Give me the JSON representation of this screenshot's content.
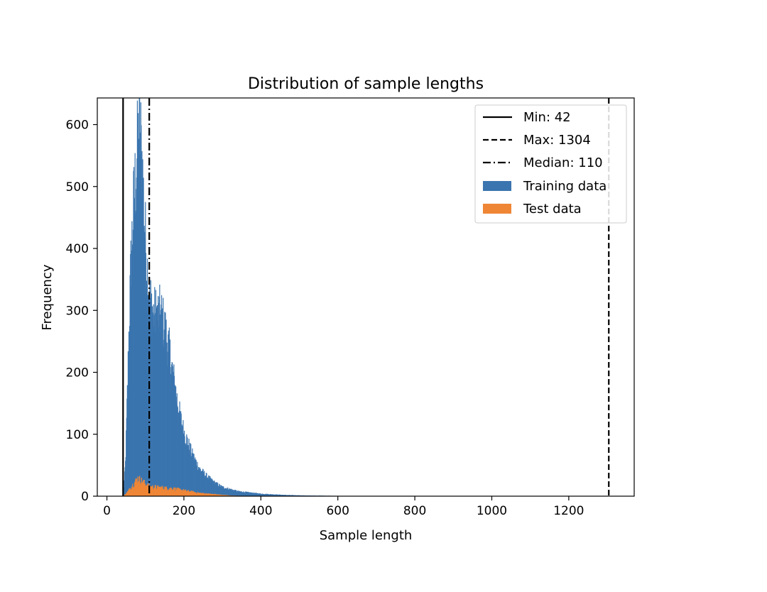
{
  "chart_data": {
    "type": "histogram",
    "title": "Distribution of sample lengths",
    "xlabel": "Sample length",
    "ylabel": "Frequency",
    "xlim": [
      -25,
      1370
    ],
    "ylim": [
      0,
      643
    ],
    "xticks": [
      0,
      200,
      400,
      600,
      800,
      1000,
      1200
    ],
    "yticks": [
      0,
      100,
      200,
      300,
      400,
      500,
      600
    ],
    "xtick_labels": [
      "0",
      "200",
      "400",
      "600",
      "800",
      "1000",
      "1200"
    ],
    "ytick_labels": [
      "0",
      "100",
      "200",
      "300",
      "400",
      "500",
      "600"
    ],
    "legend_position": "top-right",
    "reference_lines": [
      {
        "name": "min",
        "label": "Min: 42",
        "x": 42,
        "style": "solid"
      },
      {
        "name": "max",
        "label": "Max: 1304",
        "x": 1304,
        "style": "dashed"
      },
      {
        "name": "median",
        "label": "Median: 110",
        "x": 110,
        "style": "dashdot"
      }
    ],
    "series": [
      {
        "name": "Training data",
        "color": "#3b75af",
        "profile": [
          [
            42,
            0
          ],
          [
            48,
            60
          ],
          [
            55,
            230
          ],
          [
            62,
            390
          ],
          [
            70,
            490
          ],
          [
            78,
            560
          ],
          [
            84,
            615
          ],
          [
            90,
            560
          ],
          [
            96,
            470
          ],
          [
            102,
            390
          ],
          [
            110,
            330
          ],
          [
            120,
            300
          ],
          [
            130,
            300
          ],
          [
            140,
            300
          ],
          [
            150,
            275
          ],
          [
            160,
            245
          ],
          [
            170,
            205
          ],
          [
            180,
            165
          ],
          [
            190,
            130
          ],
          [
            200,
            105
          ],
          [
            220,
            70
          ],
          [
            240,
            45
          ],
          [
            260,
            32
          ],
          [
            280,
            22
          ],
          [
            300,
            15
          ],
          [
            340,
            8
          ],
          [
            400,
            4
          ],
          [
            460,
            2
          ],
          [
            520,
            1
          ],
          [
            600,
            0.5
          ],
          [
            800,
            0
          ]
        ]
      },
      {
        "name": "Test data",
        "color": "#ef8636",
        "profile": [
          [
            42,
            0
          ],
          [
            52,
            6
          ],
          [
            62,
            14
          ],
          [
            72,
            22
          ],
          [
            80,
            28
          ],
          [
            90,
            24
          ],
          [
            100,
            19
          ],
          [
            110,
            15
          ],
          [
            130,
            14
          ],
          [
            150,
            13
          ],
          [
            170,
            12
          ],
          [
            190,
            10
          ],
          [
            210,
            8
          ],
          [
            240,
            5
          ],
          [
            280,
            3
          ],
          [
            320,
            1
          ],
          [
            380,
            0
          ]
        ]
      }
    ]
  }
}
